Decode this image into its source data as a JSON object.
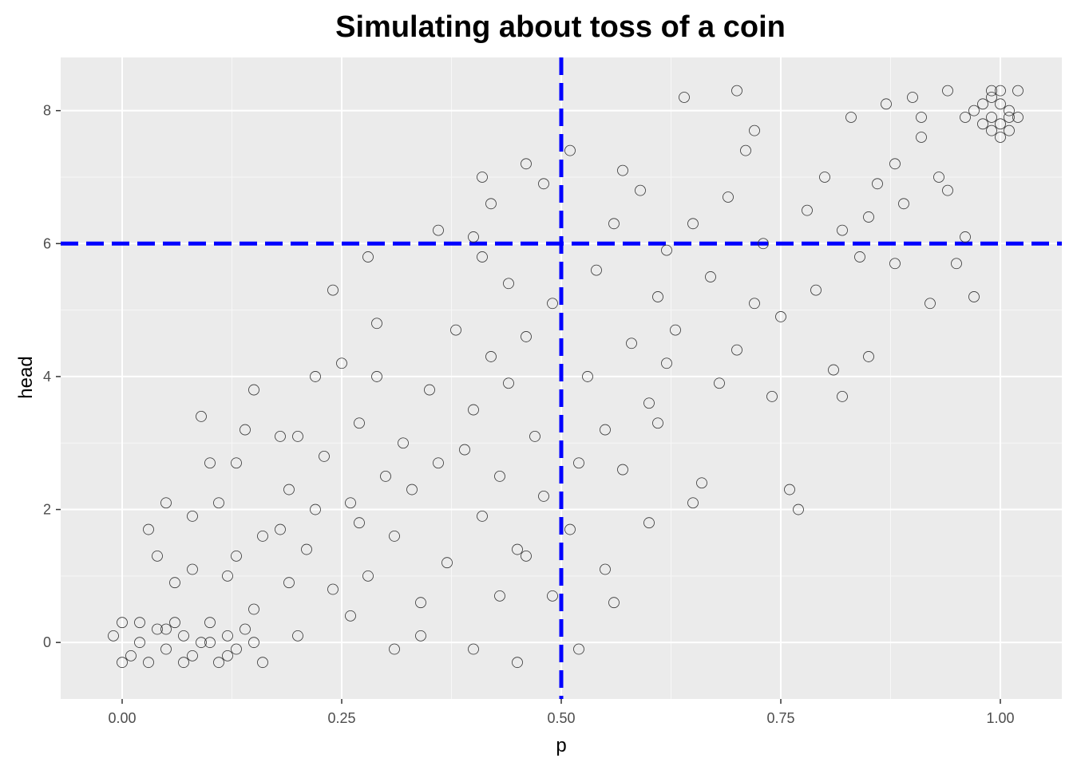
{
  "chart_data": {
    "type": "scatter",
    "title": "Simulating about toss of a coin",
    "xlabel": "p",
    "ylabel": "head",
    "xlim": [
      -0.07,
      1.07
    ],
    "ylim": [
      -0.85,
      8.8
    ],
    "xticks": [
      {
        "value": 0.0,
        "label": "0.00"
      },
      {
        "value": 0.25,
        "label": "0.25"
      },
      {
        "value": 0.5,
        "label": "0.50"
      },
      {
        "value": 0.75,
        "label": "0.75"
      },
      {
        "value": 1.0,
        "label": "1.00"
      }
    ],
    "yticks": [
      {
        "value": 0,
        "label": "0"
      },
      {
        "value": 2,
        "label": "2"
      },
      {
        "value": 4,
        "label": "4"
      },
      {
        "value": 6,
        "label": "6"
      },
      {
        "value": 8,
        "label": "8"
      }
    ],
    "grid": true,
    "reference_lines": [
      {
        "orientation": "vertical",
        "value": 0.5,
        "style": "dashed",
        "color": "#0000ff"
      },
      {
        "orientation": "horizontal",
        "value": 6,
        "style": "dashed",
        "color": "#0000ff"
      }
    ],
    "point_style": {
      "shape": "open-circle",
      "color": "#333333"
    },
    "points": [
      [
        0.0,
        0.3
      ],
      [
        0.01,
        -0.2
      ],
      [
        -0.01,
        0.1
      ],
      [
        0.02,
        0.0
      ],
      [
        0.03,
        -0.3
      ],
      [
        0.04,
        0.2
      ],
      [
        0.05,
        -0.1
      ],
      [
        0.06,
        0.3
      ],
      [
        0.07,
        0.1
      ],
      [
        0.08,
        -0.2
      ],
      [
        0.09,
        0.0
      ],
      [
        0.1,
        0.3
      ],
      [
        0.11,
        -0.3
      ],
      [
        0.12,
        0.1
      ],
      [
        0.13,
        -0.1
      ],
      [
        0.14,
        0.2
      ],
      [
        0.15,
        0.0
      ],
      [
        0.16,
        -0.3
      ],
      [
        0.0,
        -0.3
      ],
      [
        0.02,
        0.3
      ],
      [
        0.05,
        0.2
      ],
      [
        0.07,
        -0.3
      ],
      [
        0.1,
        0.0
      ],
      [
        0.12,
        -0.2
      ],
      [
        0.03,
        1.7
      ],
      [
        0.04,
        1.3
      ],
      [
        0.06,
        0.9
      ],
      [
        0.08,
        1.9
      ],
      [
        0.09,
        3.4
      ],
      [
        0.1,
        2.7
      ],
      [
        0.11,
        2.1
      ],
      [
        0.12,
        1.0
      ],
      [
        0.13,
        2.7
      ],
      [
        0.14,
        3.2
      ],
      [
        0.15,
        3.8
      ],
      [
        0.16,
        1.6
      ],
      [
        0.05,
        2.1
      ],
      [
        0.08,
        1.1
      ],
      [
        0.13,
        1.3
      ],
      [
        0.15,
        0.5
      ],
      [
        0.18,
        1.7
      ],
      [
        0.19,
        0.9
      ],
      [
        0.19,
        2.3
      ],
      [
        0.2,
        3.1
      ],
      [
        0.21,
        1.4
      ],
      [
        0.22,
        2.0
      ],
      [
        0.23,
        2.8
      ],
      [
        0.24,
        0.8
      ],
      [
        0.25,
        4.2
      ],
      [
        0.24,
        5.3
      ],
      [
        0.26,
        2.1
      ],
      [
        0.27,
        3.3
      ],
      [
        0.28,
        1.0
      ],
      [
        0.29,
        4.0
      ],
      [
        0.3,
        2.5
      ],
      [
        0.31,
        1.6
      ],
      [
        0.32,
        3.0
      ],
      [
        0.33,
        2.3
      ],
      [
        0.34,
        0.6
      ],
      [
        0.35,
        3.8
      ],
      [
        0.36,
        2.7
      ],
      [
        0.37,
        1.2
      ],
      [
        0.18,
        3.1
      ],
      [
        0.2,
        0.1
      ],
      [
        0.26,
        0.4
      ],
      [
        0.28,
        5.8
      ],
      [
        0.29,
        4.8
      ],
      [
        0.31,
        -0.1
      ],
      [
        0.34,
        0.1
      ],
      [
        0.36,
        6.2
      ],
      [
        0.22,
        4.0
      ],
      [
        0.27,
        1.8
      ],
      [
        0.38,
        4.7
      ],
      [
        0.39,
        2.9
      ],
      [
        0.4,
        3.5
      ],
      [
        0.41,
        1.9
      ],
      [
        0.42,
        4.3
      ],
      [
        0.43,
        2.5
      ],
      [
        0.44,
        3.9
      ],
      [
        0.45,
        1.4
      ],
      [
        0.46,
        4.6
      ],
      [
        0.47,
        3.1
      ],
      [
        0.48,
        2.2
      ],
      [
        0.49,
        5.1
      ],
      [
        0.41,
        7.0
      ],
      [
        0.42,
        6.6
      ],
      [
        0.4,
        6.1
      ],
      [
        0.46,
        7.2
      ],
      [
        0.48,
        6.9
      ],
      [
        0.4,
        -0.1
      ],
      [
        0.45,
        -0.3
      ],
      [
        0.41,
        5.8
      ],
      [
        0.43,
        0.7
      ],
      [
        0.46,
        1.3
      ],
      [
        0.49,
        0.7
      ],
      [
        0.44,
        5.4
      ],
      [
        0.51,
        7.4
      ],
      [
        0.51,
        1.7
      ],
      [
        0.52,
        2.7
      ],
      [
        0.52,
        -0.1
      ],
      [
        0.53,
        4.0
      ],
      [
        0.54,
        5.6
      ],
      [
        0.55,
        3.2
      ],
      [
        0.56,
        6.3
      ],
      [
        0.57,
        2.6
      ],
      [
        0.58,
        4.5
      ],
      [
        0.59,
        6.8
      ],
      [
        0.6,
        3.6
      ],
      [
        0.61,
        5.2
      ],
      [
        0.62,
        4.2
      ],
      [
        0.55,
        1.1
      ],
      [
        0.56,
        0.6
      ],
      [
        0.57,
        7.1
      ],
      [
        0.6,
        1.8
      ],
      [
        0.61,
        3.3
      ],
      [
        0.62,
        5.9
      ],
      [
        0.63,
        4.7
      ],
      [
        0.64,
        8.2
      ],
      [
        0.65,
        6.3
      ],
      [
        0.66,
        2.4
      ],
      [
        0.67,
        5.5
      ],
      [
        0.68,
        3.9
      ],
      [
        0.69,
        6.7
      ],
      [
        0.7,
        4.4
      ],
      [
        0.71,
        7.4
      ],
      [
        0.72,
        5.1
      ],
      [
        0.73,
        6.0
      ],
      [
        0.74,
        3.7
      ],
      [
        0.65,
        2.1
      ],
      [
        0.7,
        8.3
      ],
      [
        0.72,
        7.7
      ],
      [
        0.75,
        4.9
      ],
      [
        0.76,
        2.3
      ],
      [
        0.77,
        2.0
      ],
      [
        0.78,
        6.5
      ],
      [
        0.79,
        5.3
      ],
      [
        0.8,
        7.0
      ],
      [
        0.81,
        4.1
      ],
      [
        0.82,
        6.2
      ],
      [
        0.83,
        7.9
      ],
      [
        0.84,
        5.8
      ],
      [
        0.85,
        4.3
      ],
      [
        0.86,
        6.9
      ],
      [
        0.87,
        8.1
      ],
      [
        0.88,
        7.2
      ],
      [
        0.89,
        6.6
      ],
      [
        0.9,
        8.2
      ],
      [
        0.91,
        7.6
      ],
      [
        0.92,
        5.1
      ],
      [
        0.93,
        7.0
      ],
      [
        0.94,
        8.3
      ],
      [
        0.95,
        5.7
      ],
      [
        0.96,
        6.1
      ],
      [
        0.97,
        5.2
      ],
      [
        0.82,
        3.7
      ],
      [
        0.85,
        6.4
      ],
      [
        0.88,
        5.7
      ],
      [
        0.91,
        7.9
      ],
      [
        0.94,
        6.8
      ],
      [
        0.96,
        7.9
      ],
      [
        0.98,
        8.1
      ],
      [
        0.99,
        7.7
      ],
      [
        1.0,
        8.3
      ],
      [
        1.01,
        7.9
      ],
      [
        0.99,
        8.2
      ],
      [
        1.0,
        7.6
      ],
      [
        1.01,
        8.0
      ],
      [
        0.98,
        7.8
      ],
      [
        1.0,
        8.1
      ],
      [
        1.01,
        7.7
      ],
      [
        0.99,
        7.9
      ],
      [
        1.02,
        8.3
      ],
      [
        0.97,
        8.0
      ],
      [
        1.0,
        7.8
      ],
      [
        1.02,
        7.9
      ],
      [
        0.99,
        8.3
      ]
    ]
  }
}
